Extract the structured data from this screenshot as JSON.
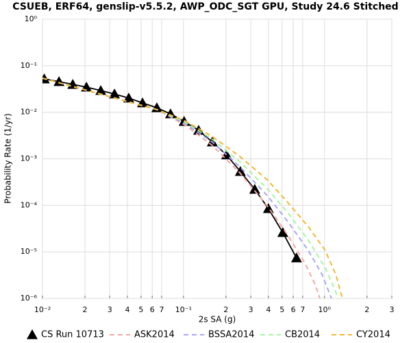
{
  "chart_data": {
    "type": "line",
    "title": "CSUEB, ERF64, genslip-v5.5.2, AWP_ODC_SGT GPU, Study 24.6 Stitched",
    "x_label": "2s SA (g)",
    "y_label": "Probability Rate (1/yr)",
    "xscale": "log",
    "yscale": "log",
    "grid": true,
    "legend": "bottom",
    "xlim": [
      0.01,
      3
    ],
    "ylim": [
      1e-06,
      1
    ],
    "xticks": [
      {
        "value": 0.01,
        "label": "10⁻²"
      },
      {
        "value": 0.02,
        "label": "2"
      },
      {
        "value": 0.03,
        "label": "3"
      },
      {
        "value": 0.04,
        "label": "4"
      },
      {
        "value": 0.05,
        "label": "5"
      },
      {
        "value": 0.06,
        "label": "6"
      },
      {
        "value": 0.07,
        "label": "7"
      },
      {
        "value": 0.1,
        "label": "10⁻¹"
      },
      {
        "value": 0.2,
        "label": "2"
      },
      {
        "value": 0.3,
        "label": "3"
      },
      {
        "value": 0.4,
        "label": "4"
      },
      {
        "value": 0.5,
        "label": "5"
      },
      {
        "value": 0.6,
        "label": "6"
      },
      {
        "value": 0.7,
        "label": "7"
      },
      {
        "value": 1,
        "label": "10⁰"
      },
      {
        "value": 2,
        "label": "2"
      },
      {
        "value": 3,
        "label": "3"
      }
    ],
    "yticks": [
      {
        "value": 1e-06,
        "label": "10⁻⁶"
      },
      {
        "value": 1e-05,
        "label": "10⁻⁵"
      },
      {
        "value": 0.0001,
        "label": "10⁻⁴"
      },
      {
        "value": 0.001,
        "label": "10⁻³"
      },
      {
        "value": 0.01,
        "label": "10⁻²"
      },
      {
        "value": 0.1,
        "label": "10⁻¹"
      },
      {
        "value": 1,
        "label": "10⁰"
      }
    ],
    "series": [
      {
        "name": "CS Run 10713",
        "color": "#000000",
        "marker": "triangle",
        "dash": "solid",
        "x": [
          0.0103,
          0.0131,
          0.0164,
          0.0205,
          0.0259,
          0.0324,
          0.0409,
          0.0512,
          0.0647,
          0.0809,
          0.101,
          0.128,
          0.16,
          0.202,
          0.253,
          0.32,
          0.4,
          0.506,
          0.633
        ],
        "values": [
          0.0521,
          0.0455,
          0.0397,
          0.0347,
          0.0293,
          0.0247,
          0.0202,
          0.0159,
          0.0125,
          0.00923,
          0.00635,
          0.00409,
          0.0023,
          0.00121,
          0.000534,
          0.000221,
          8.5e-05,
          2.6e-05,
          7.4e-06
        ]
      },
      {
        "name": "ASK2014",
        "color": "#f4a6a0",
        "marker": "none",
        "dash": "dashed",
        "x": [
          0.01,
          0.0267,
          0.0655,
          0.102,
          0.16,
          0.251,
          0.392,
          0.548,
          0.725,
          0.857,
          0.927
        ],
        "values": [
          0.054,
          0.0239,
          0.0113,
          0.00537,
          0.00194,
          0.000499,
          9.8e-05,
          2.3e-05,
          5.8e-06,
          2e-06,
          1e-06
        ]
      },
      {
        "name": "BSSA2014",
        "color": "#a6a6f4",
        "marker": "none",
        "dash": "dashed",
        "x": [
          0.01,
          0.0267,
          0.0655,
          0.102,
          0.16,
          0.251,
          0.392,
          0.548,
          0.766,
          0.959,
          1.12
        ],
        "values": [
          0.054,
          0.0239,
          0.0113,
          0.00574,
          0.0023,
          0.000676,
          0.000163,
          4.5e-05,
          1.08e-05,
          3.3e-06,
          1e-06
        ]
      },
      {
        "name": "CB2014",
        "color": "#a6f4a6",
        "marker": "none",
        "dash": "dashed",
        "x": [
          0.01,
          0.0267,
          0.0655,
          0.102,
          0.16,
          0.251,
          0.392,
          0.548,
          0.766,
          1.01,
          1.2,
          1.24
        ],
        "values": [
          0.054,
          0.0239,
          0.0113,
          0.00615,
          0.00263,
          0.00086,
          0.000229,
          7e-05,
          1.8e-05,
          4.6e-06,
          1.4e-06,
          1e-06
        ]
      },
      {
        "name": "CY2014",
        "color": "#f4b630",
        "marker": "none",
        "dash": "dashed",
        "x": [
          0.01,
          0.0267,
          0.0655,
          0.102,
          0.16,
          0.251,
          0.392,
          0.548,
          0.766,
          1.01,
          1.2,
          1.34
        ],
        "values": [
          0.054,
          0.0239,
          0.0113,
          0.00658,
          0.00301,
          0.00112,
          0.000355,
          0.000116,
          3.5e-05,
          1.08e-05,
          3.3e-06,
          1e-06
        ]
      }
    ]
  }
}
